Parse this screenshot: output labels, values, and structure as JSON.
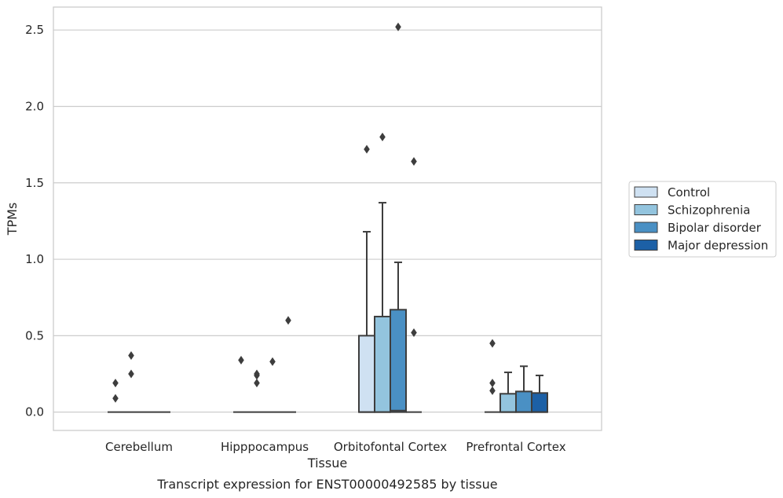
{
  "chart_data": {
    "type": "box",
    "xlabel": "Tissue",
    "ylabel": "TPMs",
    "caption": "Transcript expression for ENST00000492585 by tissue",
    "categories": [
      "Cerebellum",
      "Hipppocampus",
      "Orbitofontal Cortex",
      "Prefrontal Cortex"
    ],
    "ylim": [
      -0.12,
      2.65
    ],
    "yticks": [
      0.0,
      0.5,
      1.0,
      1.5,
      2.0,
      2.5
    ],
    "ytick_labels": [
      "0.0",
      "0.5",
      "1.0",
      "1.5",
      "2.0",
      "2.5"
    ],
    "grid": true,
    "legend_position": "right",
    "series": [
      {
        "name": "Control",
        "color": "#cfe1f2",
        "boxes": [
          {
            "q1": 0,
            "median": 0,
            "q3": 0,
            "whisker_low": 0,
            "whisker_high": 0,
            "outliers": [
              0.09,
              0.19
            ]
          },
          {
            "q1": 0,
            "median": 0,
            "q3": 0,
            "whisker_low": 0,
            "whisker_high": 0,
            "outliers": [
              0.34
            ]
          },
          {
            "q1": 0,
            "median": 0,
            "q3": 0.5,
            "whisker_low": 0,
            "whisker_high": 1.18,
            "outliers": [
              1.72
            ]
          },
          {
            "q1": 0,
            "median": 0,
            "q3": 0,
            "whisker_low": 0,
            "whisker_high": 0,
            "outliers": [
              0.14,
              0.19,
              0.45
            ]
          }
        ]
      },
      {
        "name": "Schizophrenia",
        "color": "#93c4de",
        "boxes": [
          {
            "q1": 0,
            "median": 0,
            "q3": 0,
            "whisker_low": 0,
            "whisker_high": 0,
            "outliers": [
              0.25,
              0.37
            ]
          },
          {
            "q1": 0,
            "median": 0,
            "q3": 0,
            "whisker_low": 0,
            "whisker_high": 0,
            "outliers": [
              0.19,
              0.24,
              0.25
            ]
          },
          {
            "q1": 0,
            "median": 0,
            "q3": 0.625,
            "whisker_low": 0,
            "whisker_high": 1.37,
            "outliers": [
              1.8
            ]
          },
          {
            "q1": 0,
            "median": 0,
            "q3": 0.12,
            "whisker_low": 0,
            "whisker_high": 0.26,
            "outliers": []
          }
        ]
      },
      {
        "name": "Bipolar disorder",
        "color": "#4a90c4",
        "boxes": [
          {
            "q1": 0,
            "median": 0,
            "q3": 0,
            "whisker_low": 0,
            "whisker_high": 0,
            "outliers": []
          },
          {
            "q1": 0,
            "median": 0,
            "q3": 0,
            "whisker_low": 0,
            "whisker_high": 0,
            "outliers": [
              0.33
            ]
          },
          {
            "q1": 0,
            "median": 0.01,
            "q3": 0.67,
            "whisker_low": 0,
            "whisker_high": 0.98,
            "outliers": [
              2.52
            ]
          },
          {
            "q1": 0,
            "median": 0,
            "q3": 0.135,
            "whisker_low": 0,
            "whisker_high": 0.3,
            "outliers": []
          }
        ]
      },
      {
        "name": "Major depression",
        "color": "#1c60a6",
        "boxes": [
          {
            "q1": 0,
            "median": 0,
            "q3": 0,
            "whisker_low": 0,
            "whisker_high": 0,
            "outliers": []
          },
          {
            "q1": 0,
            "median": 0,
            "q3": 0,
            "whisker_low": 0,
            "whisker_high": 0,
            "outliers": [
              0.6
            ]
          },
          {
            "q1": 0,
            "median": 0,
            "q3": 0,
            "whisker_low": 0,
            "whisker_high": 0,
            "outliers": [
              0.52,
              1.64
            ]
          },
          {
            "q1": 0,
            "median": 0,
            "q3": 0.125,
            "whisker_low": 0,
            "whisker_high": 0.24,
            "outliers": []
          }
        ]
      }
    ]
  }
}
